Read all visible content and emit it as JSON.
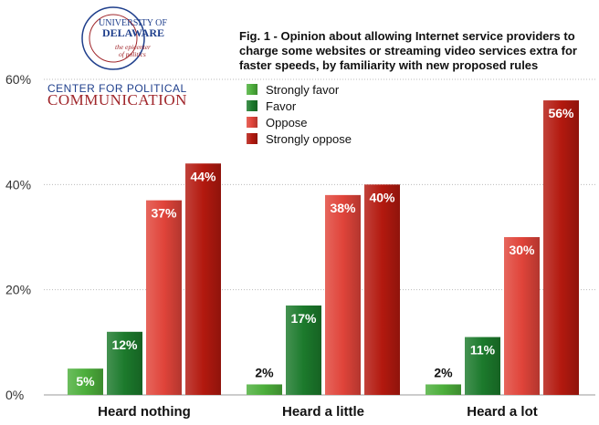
{
  "logo": {
    "university_line1": "UNIVERSITY OF",
    "university_line2": "DELAWARE",
    "tagline_line1": "the epicenter",
    "tagline_line2": "of politics",
    "center_line1": "CENTER FOR POLITICAL",
    "center_line2": "COMMUNICATION",
    "colors": {
      "blue": "#1f3f8c",
      "red": "#a0262b"
    }
  },
  "chart_data": {
    "type": "bar",
    "title_lines": [
      "Fig. 1 - Opinion about allowing Internet service providers to",
      "charge some websites or streaming video services extra for",
      "faster speeds, by familiarity with new proposed rules"
    ],
    "categories": [
      "Heard nothing",
      "Heard a little",
      "Heard a lot"
    ],
    "series": [
      {
        "name": "Strongly favor",
        "values": [
          5,
          2,
          2
        ],
        "color": "#4cae3b"
      },
      {
        "name": "Favor",
        "values": [
          12,
          17,
          11
        ],
        "color": "#1c7a2c"
      },
      {
        "name": "Oppose",
        "values": [
          37,
          38,
          30
        ],
        "color": "#e0443a"
      },
      {
        "name": "Strongly oppose",
        "values": [
          44,
          40,
          56
        ],
        "color": "#b3190f"
      }
    ],
    "data_labels": [
      [
        "5%",
        "2%",
        "2%"
      ],
      [
        "12%",
        "17%",
        "11%"
      ],
      [
        "37%",
        "38%",
        "30%"
      ],
      [
        "44%",
        "40%",
        "56%"
      ]
    ],
    "yticks": [
      0,
      20,
      40,
      60
    ],
    "ytick_labels": [
      "0%",
      "20%",
      "40%",
      "60%"
    ],
    "ylim": [
      0,
      60
    ],
    "grid": true,
    "legend_position": "top-left"
  }
}
